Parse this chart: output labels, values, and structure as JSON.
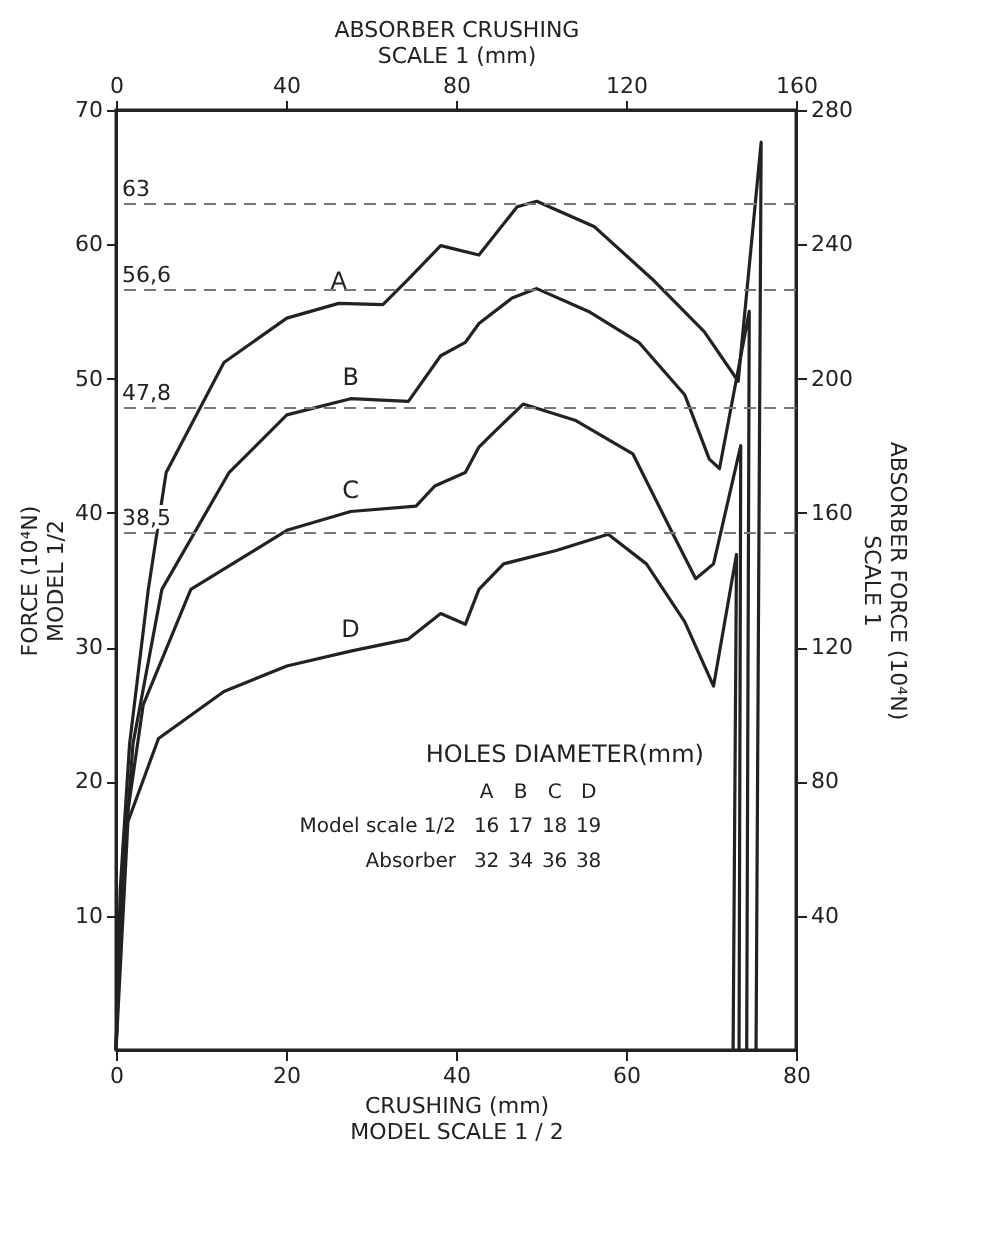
{
  "chart_data": {
    "type": "line",
    "xlabel": "CRUSHING (mm)\nMODEL SCALE 1 / 2",
    "x2label": "ABSORBER CRUSHING\nSCALE 1 (mm)",
    "ylabel": "FORCE (10⁴N)\nMODEL 1/2",
    "y2label": "ABSORBER FORCE (10⁴N)\nSCALE 1",
    "xlim": [
      0,
      80
    ],
    "xticks": [
      0,
      20,
      40,
      60,
      80
    ],
    "x2lim": [
      0,
      160
    ],
    "x2ticks": [
      0,
      40,
      80,
      120,
      160
    ],
    "ylim": [
      0,
      70
    ],
    "yticks": [
      10,
      20,
      30,
      40,
      50,
      60,
      70
    ],
    "y2lim": [
      0,
      280
    ],
    "y2ticks": [
      40,
      80,
      120,
      160,
      200,
      240,
      280
    ],
    "grid": false,
    "legend": false,
    "series": [
      {
        "name": "A",
        "color": "#222222",
        "x": [
          0,
          0.5,
          1.6,
          3.8,
          5.9,
          12.7,
          20.1,
          26.2,
          31.4,
          34.4,
          38.2,
          42.7,
          47.2,
          49.5,
          56.3,
          63.1,
          69.2,
          73.2,
          75.9,
          75.3
        ],
        "values": [
          0,
          12,
          22.8,
          34.3,
          43,
          51.2,
          54.5,
          55.6,
          55.5,
          57.4,
          59.9,
          59.2,
          62.8,
          63.2,
          61.3,
          57.4,
          53.5,
          49.8,
          67.6,
          0
        ]
      },
      {
        "name": "B",
        "color": "#222222",
        "x": [
          0,
          0.6,
          2,
          5.4,
          13.3,
          20.1,
          27.6,
          34.4,
          38.2,
          41.1,
          42.7,
          46.6,
          49.5,
          55.6,
          61.5,
          66.9,
          69.8,
          71,
          74.5,
          74.2
        ],
        "values": [
          0,
          11,
          22.8,
          34.3,
          43,
          47.3,
          48.5,
          48.3,
          51.7,
          52.7,
          54.1,
          56,
          56.7,
          55,
          52.7,
          48.8,
          44,
          43.3,
          55,
          0
        ]
      },
      {
        "name": "C",
        "color": "#222222",
        "x": [
          0,
          0.9,
          3.2,
          8.8,
          20.1,
          27.6,
          35.3,
          37.5,
          41.1,
          42.7,
          44.3,
          47.9,
          54,
          60.8,
          65.3,
          68.2,
          70.3,
          73.5,
          73.3
        ],
        "values": [
          0,
          15.6,
          25.7,
          34.3,
          38.7,
          40.1,
          40.5,
          42,
          43,
          44.9,
          45.9,
          48.1,
          46.9,
          44.4,
          38.7,
          35.1,
          36.2,
          45,
          0
        ]
      },
      {
        "name": "D",
        "color": "#222222",
        "x": [
          0,
          1.4,
          5,
          12.7,
          20.1,
          27.6,
          34.4,
          38.2,
          41.1,
          42.7,
          45.6,
          51.8,
          57.9,
          62.4,
          66.9,
          70.3,
          73,
          72.6
        ],
        "values": [
          0,
          17,
          23.2,
          26.7,
          28.6,
          29.7,
          30.6,
          32.5,
          31.7,
          34.3,
          36.2,
          37.2,
          38.4,
          36.2,
          31.9,
          27.1,
          36.9,
          0
        ]
      }
    ],
    "ref_lines": [
      {
        "axis": "y",
        "value": 63,
        "label": "63",
        "color": "#777777",
        "line_style": "dashed"
      },
      {
        "axis": "y",
        "value": 56.6,
        "label": "56,6",
        "color": "#777777",
        "line_style": "dashed"
      },
      {
        "axis": "y",
        "value": 47.8,
        "label": "47,8",
        "color": "#777777",
        "line_style": "dashed"
      },
      {
        "axis": "y",
        "value": 38.5,
        "label": "38,5",
        "color": "#777777",
        "line_style": "dashed"
      }
    ],
    "annotations": [
      "HOLES DIAMETER(mm)",
      "A",
      "B",
      "C",
      "D",
      "Model scale 1/2",
      "16",
      "17",
      "18",
      "19",
      "Absorber",
      "32",
      "34",
      "36",
      "38"
    ]
  }
}
